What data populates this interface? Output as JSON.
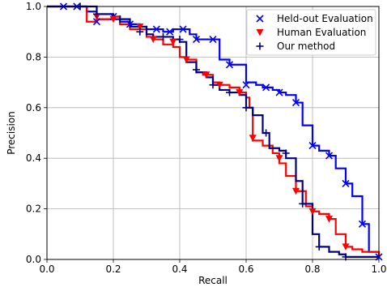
{
  "chart_data": {
    "type": "line",
    "xlabel": "Recall",
    "ylabel": "Precision",
    "xlim": [
      0,
      1
    ],
    "ylim": [
      0,
      1
    ],
    "x_ticks": [
      "0.0",
      "0.2",
      "0.4",
      "0.6",
      "0.8",
      "1.0"
    ],
    "y_ticks": [
      "0.0",
      "0.2",
      "0.4",
      "0.6",
      "0.8",
      "1.0"
    ],
    "grid": true,
    "legend_position": "top-right",
    "series": [
      {
        "name": "Held-out Evaluation",
        "color": "#0000ff",
        "marker": "x",
        "x": [
          0.0,
          0.05,
          0.1,
          0.12,
          0.15,
          0.2,
          0.22,
          0.25,
          0.28,
          0.3,
          0.35,
          0.38,
          0.4,
          0.43,
          0.45,
          0.48,
          0.5,
          0.52,
          0.55,
          0.58,
          0.6,
          0.63,
          0.65,
          0.68,
          0.7,
          0.72,
          0.75,
          0.77,
          0.8,
          0.82,
          0.85,
          0.87,
          0.9,
          0.92,
          0.95,
          0.97,
          1.0
        ],
        "y": [
          1.0,
          1.0,
          1.0,
          0.98,
          0.95,
          0.96,
          0.94,
          0.93,
          0.92,
          0.91,
          0.9,
          0.91,
          0.91,
          0.89,
          0.87,
          0.87,
          0.87,
          0.79,
          0.77,
          0.77,
          0.7,
          0.69,
          0.68,
          0.67,
          0.66,
          0.65,
          0.62,
          0.53,
          0.45,
          0.43,
          0.41,
          0.36,
          0.3,
          0.25,
          0.14,
          0.03,
          0.01
        ],
        "marker_points": [
          [
            0.05,
            1.0
          ],
          [
            0.09,
            1.0
          ],
          [
            0.15,
            0.94
          ],
          [
            0.2,
            0.96
          ],
          [
            0.25,
            0.93
          ],
          [
            0.33,
            0.91
          ],
          [
            0.37,
            0.9
          ],
          [
            0.41,
            0.91
          ],
          [
            0.45,
            0.87
          ],
          [
            0.5,
            0.87
          ],
          [
            0.55,
            0.77
          ],
          [
            0.6,
            0.69
          ],
          [
            0.66,
            0.68
          ],
          [
            0.7,
            0.66
          ],
          [
            0.75,
            0.62
          ],
          [
            0.8,
            0.45
          ],
          [
            0.85,
            0.41
          ],
          [
            0.9,
            0.3
          ],
          [
            0.95,
            0.14
          ],
          [
            1.0,
            0.01
          ]
        ]
      },
      {
        "name": "Human Evaluation",
        "color": "#ff0000",
        "marker": "v",
        "x": [
          0.0,
          0.05,
          0.1,
          0.12,
          0.15,
          0.2,
          0.22,
          0.25,
          0.3,
          0.32,
          0.35,
          0.38,
          0.4,
          0.42,
          0.45,
          0.47,
          0.5,
          0.52,
          0.55,
          0.58,
          0.6,
          0.61,
          0.62,
          0.65,
          0.68,
          0.7,
          0.72,
          0.75,
          0.78,
          0.8,
          0.82,
          0.85,
          0.87,
          0.9,
          0.92,
          0.95,
          1.0
        ],
        "y": [
          1.0,
          1.0,
          1.0,
          0.94,
          0.95,
          0.96,
          0.93,
          0.91,
          0.88,
          0.87,
          0.85,
          0.84,
          0.8,
          0.79,
          0.74,
          0.73,
          0.7,
          0.69,
          0.68,
          0.66,
          0.64,
          0.6,
          0.47,
          0.45,
          0.42,
          0.38,
          0.33,
          0.27,
          0.21,
          0.19,
          0.18,
          0.16,
          0.1,
          0.05,
          0.04,
          0.03,
          0.01
        ],
        "marker_points": [
          [
            0.15,
            0.96
          ],
          [
            0.2,
            0.95
          ],
          [
            0.28,
            0.92
          ],
          [
            0.32,
            0.87
          ],
          [
            0.38,
            0.86
          ],
          [
            0.42,
            0.79
          ],
          [
            0.48,
            0.73
          ],
          [
            0.52,
            0.69
          ],
          [
            0.58,
            0.66
          ],
          [
            0.62,
            0.48
          ],
          [
            0.7,
            0.4
          ],
          [
            0.75,
            0.27
          ],
          [
            0.8,
            0.19
          ],
          [
            0.85,
            0.16
          ],
          [
            0.9,
            0.05
          ]
        ]
      },
      {
        "name": "Our method",
        "color": "#000080",
        "marker": "+",
        "x": [
          0.0,
          0.05,
          0.1,
          0.15,
          0.2,
          0.25,
          0.3,
          0.32,
          0.35,
          0.38,
          0.4,
          0.42,
          0.45,
          0.48,
          0.5,
          0.52,
          0.55,
          0.58,
          0.6,
          0.62,
          0.65,
          0.67,
          0.7,
          0.72,
          0.75,
          0.77,
          0.8,
          0.82,
          0.85,
          0.88,
          0.9,
          0.93,
          0.95,
          0.97,
          1.0
        ],
        "y": [
          1.0,
          1.0,
          1.0,
          0.97,
          0.95,
          0.92,
          0.89,
          0.88,
          0.88,
          0.87,
          0.86,
          0.78,
          0.74,
          0.72,
          0.69,
          0.67,
          0.66,
          0.65,
          0.6,
          0.57,
          0.5,
          0.44,
          0.43,
          0.4,
          0.31,
          0.22,
          0.1,
          0.05,
          0.03,
          0.02,
          0.01,
          0.01,
          0.01,
          0.01,
          0.01
        ],
        "marker_points": [
          [
            0.1,
            1.0
          ],
          [
            0.15,
            0.97
          ],
          [
            0.22,
            0.95
          ],
          [
            0.28,
            0.9
          ],
          [
            0.35,
            0.88
          ],
          [
            0.4,
            0.87
          ],
          [
            0.45,
            0.75
          ],
          [
            0.5,
            0.69
          ],
          [
            0.55,
            0.66
          ],
          [
            0.6,
            0.6
          ],
          [
            0.66,
            0.5
          ],
          [
            0.72,
            0.42
          ],
          [
            0.77,
            0.22
          ],
          [
            0.82,
            0.05
          ],
          [
            0.9,
            0.01
          ]
        ]
      }
    ]
  }
}
